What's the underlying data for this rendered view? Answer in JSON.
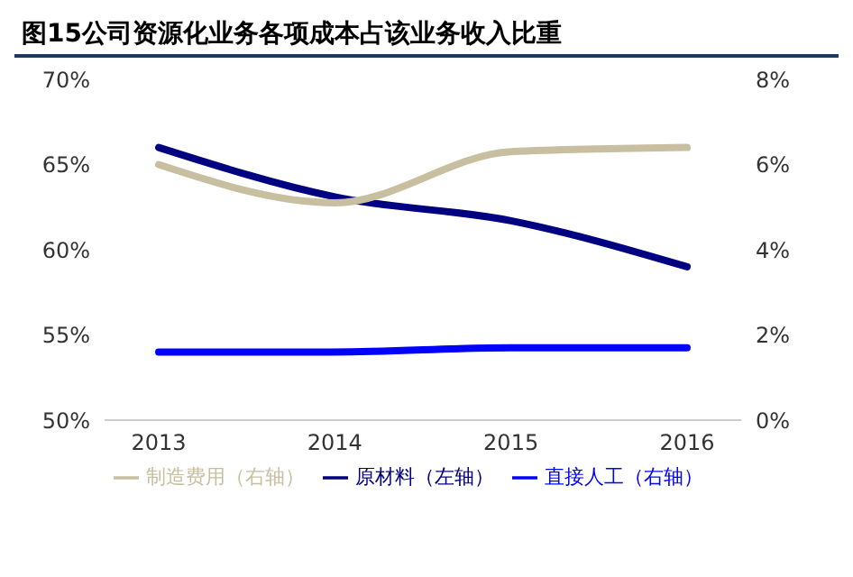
{
  "chart_data": {
    "type": "line",
    "title": "图15公司资源化业务各项成本占该业务收入比重",
    "categories": [
      "2013",
      "2014",
      "2015",
      "2016"
    ],
    "series": [
      {
        "name": "原材料（左轴）",
        "color": "#000080",
        "values": [
          66.0,
          63.1,
          61.7,
          59.0
        ]
      },
      {
        "name": "直接人工（右轴）",
        "color": "#0000ff",
        "values": [
          1.6,
          1.6,
          1.7,
          1.7
        ],
        "axis": "y2"
      },
      {
        "name": "制造费用（右轴）",
        "color": "#c8bfa0",
        "values": [
          6.0,
          5.1,
          6.3,
          6.4
        ],
        "axis": "y2"
      }
    ],
    "ylim": [
      50,
      70
    ],
    "yticks": [
      {
        "value": 50,
        "label": "50%"
      },
      {
        "value": 55,
        "label": "55%"
      },
      {
        "value": 60,
        "label": "60%"
      },
      {
        "value": 65,
        "label": "65%"
      },
      {
        "value": 70,
        "label": "70%"
      }
    ],
    "y2lim": [
      0,
      8
    ],
    "y2ticks": [
      {
        "value": 0,
        "label": "0%"
      },
      {
        "value": 2,
        "label": "2%"
      },
      {
        "value": 4,
        "label": "4%"
      },
      {
        "value": 6,
        "label": "6%"
      },
      {
        "value": 8,
        "label": "8%"
      }
    ],
    "grid": false,
    "legend": "bottom",
    "marker": "none",
    "line_style": "solid"
  }
}
